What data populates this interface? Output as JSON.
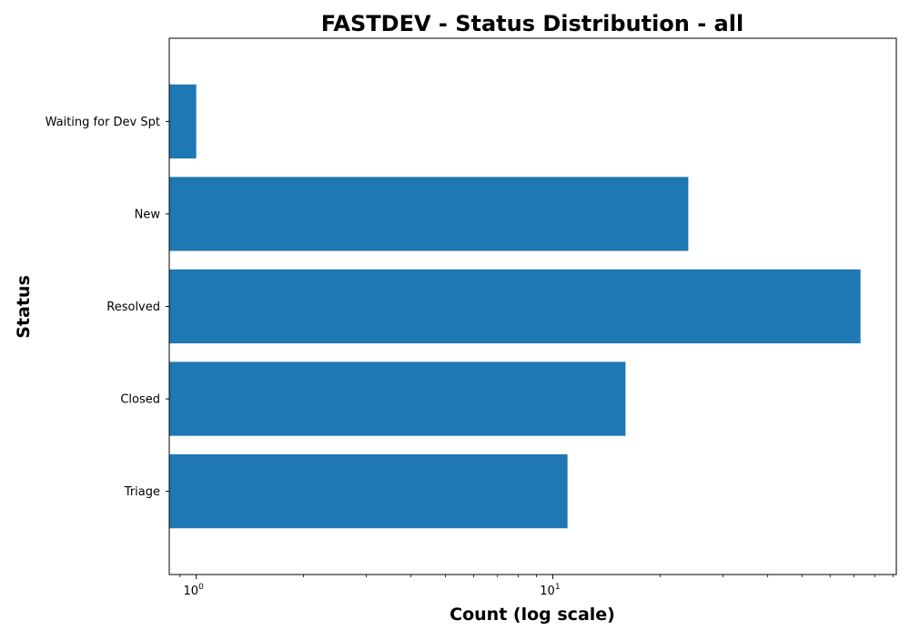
{
  "chart_data": {
    "type": "bar",
    "orientation": "horizontal",
    "title": "FASTDEV - Status Distribution - all",
    "xlabel": "Count (log scale)",
    "ylabel": "Status",
    "x_scale": "log",
    "xlim": [
      0.84,
      92
    ],
    "x_ticks": [
      {
        "value": 1,
        "base": "10",
        "exponent": "0"
      },
      {
        "value": 10,
        "base": "10",
        "exponent": "1"
      }
    ],
    "categories": [
      "Waiting for Dev Spt",
      "New",
      "Resolved",
      "Closed",
      "Triage"
    ],
    "values": [
      1,
      24,
      73,
      16,
      11
    ],
    "bar_color": "#1f77b4",
    "grid": false,
    "legend": "none"
  }
}
